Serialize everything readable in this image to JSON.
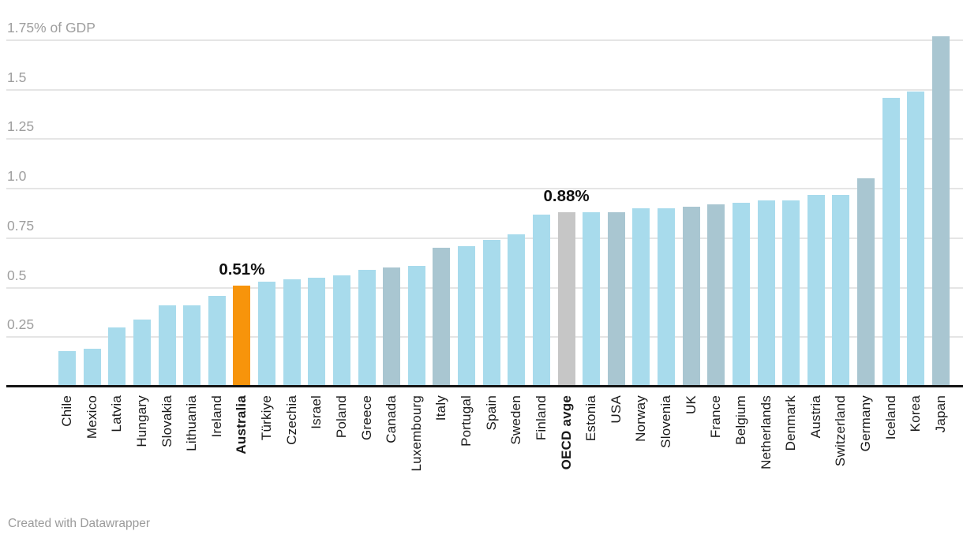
{
  "chart_data": {
    "type": "bar",
    "title": "",
    "ylabel": "% of GDP",
    "ylim": [
      0,
      1.79
    ],
    "grid": true,
    "legend": "none",
    "y_ticks": [
      {
        "value": 0.25,
        "label": "0.25"
      },
      {
        "value": 0.5,
        "label": "0.5"
      },
      {
        "value": 0.75,
        "label": "0.75"
      },
      {
        "value": 1.0,
        "label": "1.0"
      },
      {
        "value": 1.25,
        "label": "1.25"
      },
      {
        "value": 1.5,
        "label": "1.5"
      },
      {
        "value": 1.75,
        "label": "1.75% of GDP"
      }
    ],
    "colors": {
      "default": "#a8dbec",
      "g7": "#a9c6d1",
      "highlight": "#f7940b",
      "average": "#c6c6c6"
    },
    "bars": [
      {
        "label": "Chile",
        "value": 0.18,
        "group": "default"
      },
      {
        "label": "Mexico",
        "value": 0.19,
        "group": "default"
      },
      {
        "label": "Latvia",
        "value": 0.3,
        "group": "default"
      },
      {
        "label": "Hungary",
        "value": 0.34,
        "group": "default"
      },
      {
        "label": "Slovakia",
        "value": 0.41,
        "group": "default"
      },
      {
        "label": "Lithuania",
        "value": 0.41,
        "group": "default"
      },
      {
        "label": "Ireland",
        "value": 0.46,
        "group": "default"
      },
      {
        "label": "Australia",
        "value": 0.51,
        "group": "highlight",
        "bold": true,
        "annotation": "0.51%"
      },
      {
        "label": "Türkiye",
        "value": 0.53,
        "group": "default"
      },
      {
        "label": "Czechia",
        "value": 0.54,
        "group": "default"
      },
      {
        "label": "Israel",
        "value": 0.55,
        "group": "default"
      },
      {
        "label": "Poland",
        "value": 0.56,
        "group": "default"
      },
      {
        "label": "Greece",
        "value": 0.59,
        "group": "default"
      },
      {
        "label": "Canada",
        "value": 0.6,
        "group": "g7"
      },
      {
        "label": "Luxembourg",
        "value": 0.61,
        "group": "default"
      },
      {
        "label": "Italy",
        "value": 0.7,
        "group": "g7"
      },
      {
        "label": "Portugal",
        "value": 0.71,
        "group": "default"
      },
      {
        "label": "Spain",
        "value": 0.74,
        "group": "default"
      },
      {
        "label": "Sweden",
        "value": 0.77,
        "group": "default"
      },
      {
        "label": "Finland",
        "value": 0.87,
        "group": "default"
      },
      {
        "label": "OECD avge",
        "value": 0.88,
        "group": "average",
        "bold": true,
        "annotation": "0.88%"
      },
      {
        "label": "Estonia",
        "value": 0.88,
        "group": "default"
      },
      {
        "label": "USA",
        "value": 0.88,
        "group": "g7"
      },
      {
        "label": "Norway",
        "value": 0.9,
        "group": "default"
      },
      {
        "label": "Slovenia",
        "value": 0.9,
        "group": "default"
      },
      {
        "label": "UK",
        "value": 0.91,
        "group": "g7"
      },
      {
        "label": "France",
        "value": 0.92,
        "group": "g7"
      },
      {
        "label": "Belgium",
        "value": 0.93,
        "group": "default"
      },
      {
        "label": "Netherlands",
        "value": 0.94,
        "group": "default"
      },
      {
        "label": "Denmark",
        "value": 0.94,
        "group": "default"
      },
      {
        "label": "Austria",
        "value": 0.97,
        "group": "default"
      },
      {
        "label": "Switzerland",
        "value": 0.97,
        "group": "default"
      },
      {
        "label": "Germany",
        "value": 1.05,
        "group": "g7"
      },
      {
        "label": "Iceland",
        "value": 1.46,
        "group": "default"
      },
      {
        "label": "Korea",
        "value": 1.49,
        "group": "default"
      },
      {
        "label": "Japan",
        "value": 1.77,
        "group": "g7"
      }
    ]
  },
  "footer": {
    "credit": "Created with Datawrapper"
  }
}
